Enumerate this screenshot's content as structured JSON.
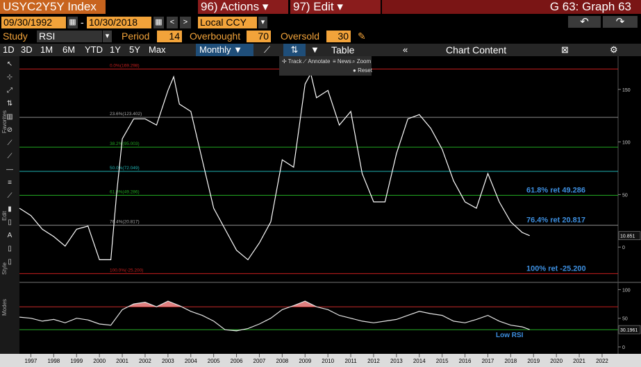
{
  "header": {
    "ticker": "USYC2Y5Y Index",
    "actions": "96) Actions",
    "edit": "97) Edit",
    "graph": "G 63: Graph 63"
  },
  "controls": {
    "start_date": "09/30/1992",
    "end_date": "10/30/2018",
    "currency": "Local CCY",
    "study_label": "Study",
    "study": "RSI",
    "period_label": "Period",
    "period": "14",
    "overbought_label": "Overbought",
    "overbought": "70",
    "oversold_label": "Oversold",
    "oversold": "30"
  },
  "tabs": [
    "1D",
    "3D",
    "1M",
    "6M",
    "YTD",
    "1Y",
    "5Y",
    "Max",
    "Monthly"
  ],
  "table": "Table",
  "chart_content": "Chart Content",
  "toolbar": [
    "Track",
    "Annotate",
    "News",
    "Zoom",
    "Reset"
  ],
  "side_labels": [
    "Favorites",
    "Edit",
    "Style",
    "Modes"
  ],
  "chart_data": [
    {
      "type": "line",
      "color": "#ffffff",
      "x": [
        1996.5,
        1997,
        1997.5,
        1998,
        1998.5,
        1999,
        1999.5,
        2000,
        2000.5,
        2000.75,
        2001,
        2001.5,
        2002,
        2002.5,
        2003,
        2003.25,
        2003.5,
        2004,
        2004.5,
        2005,
        2005.5,
        2006,
        2006.5,
        2007,
        2007.5,
        2008,
        2008.5,
        2009,
        2009.25,
        2009.5,
        2010,
        2010.5,
        2011,
        2011.5,
        2012,
        2012.5,
        2013,
        2013.5,
        2014,
        2014.5,
        2015,
        2015.5,
        2016,
        2016.5,
        2017,
        2017.5,
        2018,
        2018.5,
        2018.83
      ],
      "values": [
        37,
        30,
        17,
        10,
        1,
        17,
        20,
        -12,
        -12,
        50,
        103,
        122,
        122,
        116,
        149,
        162,
        136,
        129,
        83,
        37,
        17,
        -3,
        -12,
        4,
        24,
        83,
        76,
        155,
        165,
        142,
        149,
        116,
        129,
        70,
        43,
        43,
        89,
        122,
        126,
        113,
        93,
        63,
        43,
        37,
        70,
        43,
        24,
        14,
        10.851
      ],
      "xlim": [
        1996.5,
        2022.7
      ],
      "xticks": [
        1997,
        1998,
        1999,
        2000,
        2001,
        2002,
        2003,
        2004,
        2005,
        2006,
        2007,
        2008,
        2009,
        2010,
        2011,
        2012,
        2013,
        2014,
        2015,
        2016,
        2017,
        2018,
        2019,
        2020,
        2021,
        2022
      ],
      "ylim": [
        -32.2,
        178.9
      ],
      "yticks": [
        0,
        50,
        100,
        150
      ],
      "levels": [
        {
          "value": 169.298,
          "label": "0.0%(169.298)",
          "color": "#c81e1e"
        },
        {
          "value": 123.402,
          "label": "23.6%(123.402)",
          "color": "#8c8c8c"
        },
        {
          "value": 95.003,
          "label": "38.2%(95.003)",
          "color": "#22a822"
        },
        {
          "value": 72.049,
          "label": "50.0%(72.049)",
          "color": "#1fb5b5"
        },
        {
          "value": 49.286,
          "label": "61.8%(49.286)",
          "color": "#22a822"
        },
        {
          "value": 20.817,
          "label": "76.4%(20.817)",
          "color": "#8c8c8c"
        },
        {
          "value": -25.2,
          "label": "100.0%(-25.200)",
          "color": "#c81e1e"
        }
      ],
      "annotations": [
        {
          "value": 49.286,
          "label": "61.8% ret 49.286"
        },
        {
          "value": 20.817,
          "label": "76.4% ret 20.817"
        },
        {
          "value": -25.2,
          "label": "100% ret -25.200"
        }
      ]
    },
    {
      "type": "line",
      "color": "#e8e8e8",
      "x": [
        1996.5,
        1997,
        1997.5,
        1998,
        1998.5,
        1999,
        1999.5,
        2000,
        2000.5,
        2001,
        2001.5,
        2002,
        2002.5,
        2003,
        2003.5,
        2004,
        2004.5,
        2005,
        2005.5,
        2006,
        2006.5,
        2007,
        2007.5,
        2008,
        2008.5,
        2009,
        2009.5,
        2010,
        2010.5,
        2011,
        2011.5,
        2012,
        2012.5,
        2013,
        2013.5,
        2014,
        2014.5,
        2015,
        2015.5,
        2016,
        2016.5,
        2017,
        2017.5,
        2018,
        2018.5,
        2018.83
      ],
      "values": [
        52,
        50,
        45,
        48,
        42,
        50,
        47,
        40,
        38,
        65,
        75,
        78,
        70,
        80,
        72,
        62,
        55,
        45,
        30,
        28,
        32,
        40,
        50,
        65,
        72,
        80,
        70,
        65,
        55,
        50,
        45,
        42,
        45,
        48,
        55,
        62,
        58,
        55,
        45,
        42,
        48,
        55,
        45,
        38,
        35,
        30.1961
      ],
      "ylim": [
        -6,
        109
      ],
      "yticks": [
        0,
        50,
        100
      ],
      "levels": [
        {
          "value": 70,
          "color": "#c81e1e"
        },
        {
          "value": 30,
          "color": "#22a822"
        }
      ],
      "annotations": [
        {
          "value": 12,
          "label": "Low RSI"
        }
      ]
    }
  ]
}
